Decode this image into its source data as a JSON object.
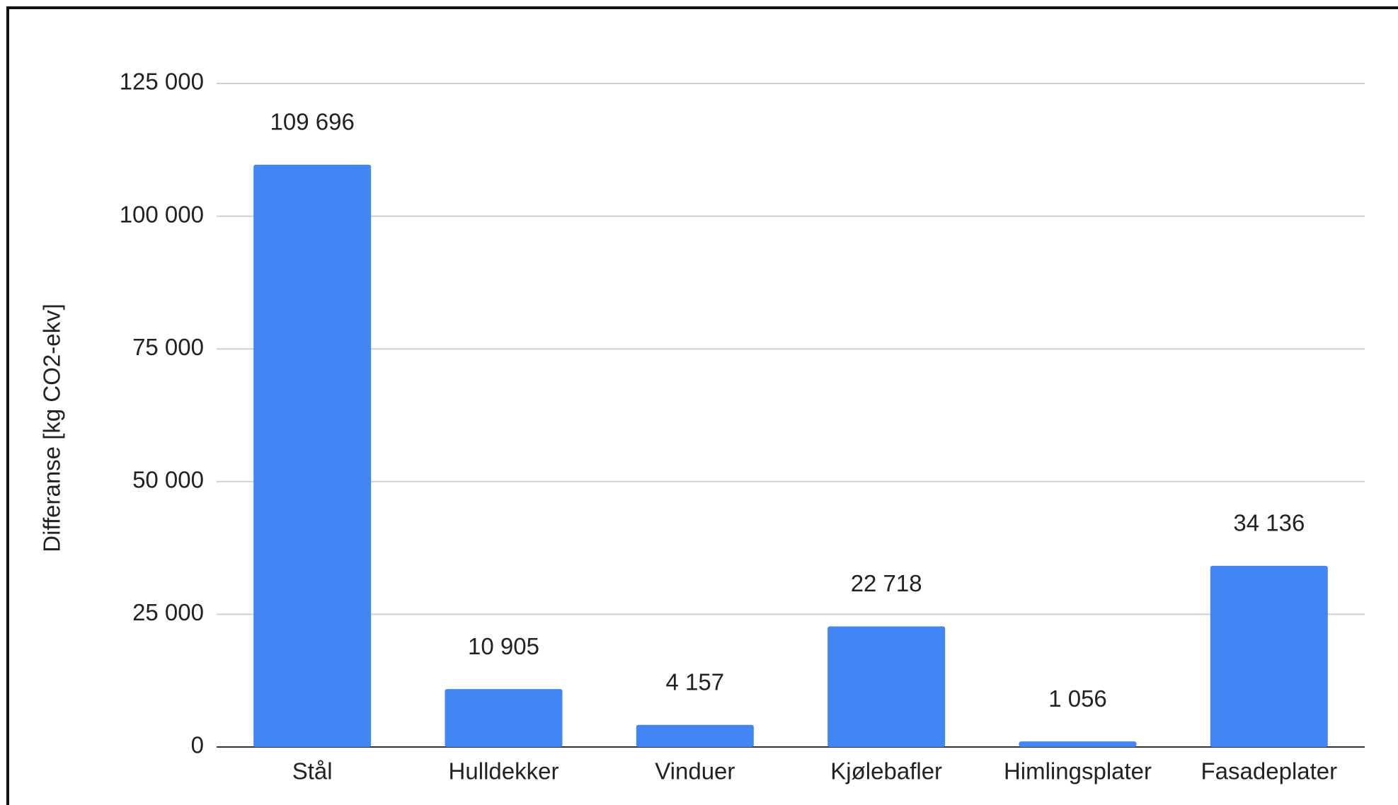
{
  "chart_data": {
    "type": "bar",
    "y_label": "Differanse [kg CO2-ekv]",
    "categories": [
      "Stål",
      "Hulldekker",
      "Vinduer",
      "Kjølebafler",
      "Himlingsplater",
      "Fasadeplater"
    ],
    "values": [
      109696,
      10905,
      4157,
      22718,
      1056,
      34136
    ],
    "value_labels": [
      "109 696",
      "10 905",
      "4 157",
      "22 718",
      "1 056",
      "34 136"
    ],
    "color": "#4285f4",
    "ylim": [
      0,
      125000
    ],
    "yticks": [
      0,
      {
        "value": 25000,
        "label": "25 000"
      },
      {
        "value": 50000,
        "label": "50 000"
      },
      {
        "value": 75000,
        "label": "75 000"
      },
      {
        "value": 100000,
        "label": "100 000"
      },
      {
        "value": 125000,
        "label": "125 000"
      }
    ],
    "grid": true
  }
}
